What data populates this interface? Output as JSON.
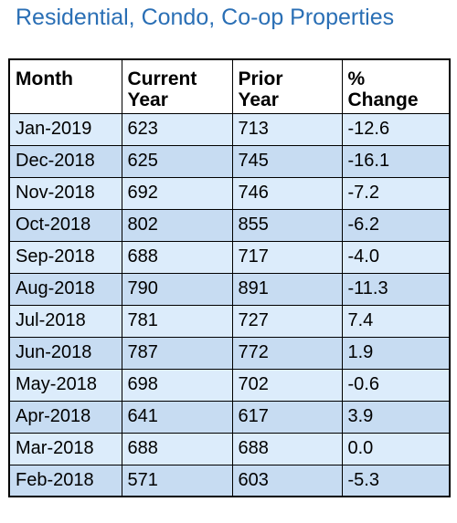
{
  "title": "Residential, Condo, Co-op Properties",
  "table": {
    "headers": [
      {
        "line1": "Month",
        "line2": ""
      },
      {
        "line1": "Current",
        "line2": "Year"
      },
      {
        "line1": "Prior",
        "line2": "Year"
      },
      {
        "line1": "%",
        "line2": "Change"
      }
    ],
    "rows": [
      {
        "month": "Jan-2019",
        "current": "623",
        "prior": "713",
        "change": "-12.6"
      },
      {
        "month": "Dec-2018",
        "current": "625",
        "prior": "745",
        "change": "-16.1"
      },
      {
        "month": "Nov-2018",
        "current": "692",
        "prior": "746",
        "change": "-7.2"
      },
      {
        "month": "Oct-2018",
        "current": "802",
        "prior": "855",
        "change": "-6.2"
      },
      {
        "month": "Sep-2018",
        "current": "688",
        "prior": "717",
        "change": "-4.0"
      },
      {
        "month": "Aug-2018",
        "current": "790",
        "prior": "891",
        "change": "-11.3"
      },
      {
        "month": "Jul-2018",
        "current": "781",
        "prior": "727",
        "change": "7.4"
      },
      {
        "month": "Jun-2018",
        "current": "787",
        "prior": "772",
        "change": "1.9"
      },
      {
        "month": "May-2018",
        "current": "698",
        "prior": "702",
        "change": "-0.6"
      },
      {
        "month": "Apr-2018",
        "current": "641",
        "prior": "617",
        "change": "3.9"
      },
      {
        "month": "Mar-2018",
        "current": "688",
        "prior": "688",
        "change": "0.0"
      },
      {
        "month": "Feb-2018",
        "current": "571",
        "prior": "603",
        "change": "-5.3"
      }
    ]
  },
  "colors": {
    "title": "#2a6fb5",
    "row_light": "#dcecfb",
    "row_dark": "#c7dcf2",
    "border": "#000000"
  }
}
